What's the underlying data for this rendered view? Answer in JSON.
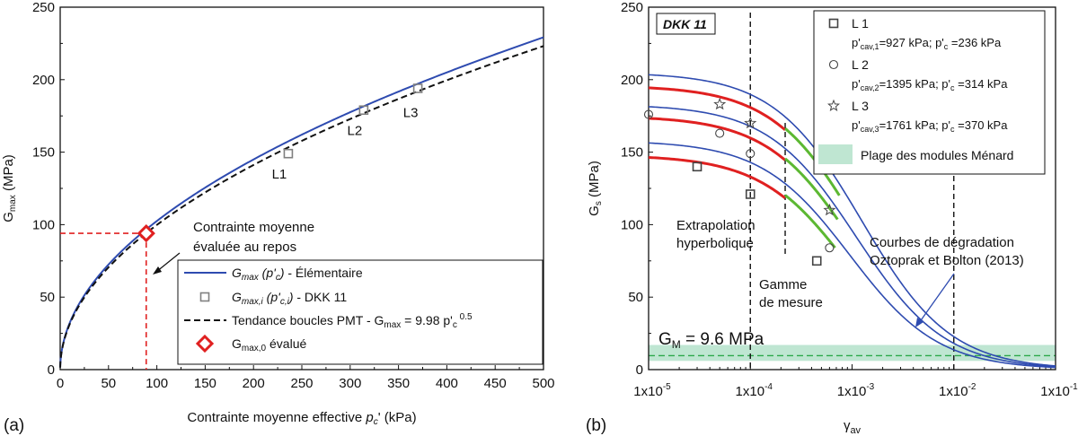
{
  "chart_data": [
    {
      "panel_label": "(a)",
      "type": "line",
      "xlabel_prefix": "Contrainte moyenne effective ",
      "xlabel_var": "p",
      "xlabel_sub": "c",
      "xlabel_suffix": "' (kPa)",
      "ylabel_main": "G",
      "ylabel_sub": "max",
      "ylabel_suffix": " (MPa)",
      "xlim": [
        0,
        500
      ],
      "ylim": [
        0,
        250
      ],
      "xticks": [
        0,
        50,
        100,
        150,
        200,
        250,
        300,
        350,
        400,
        450,
        500
      ],
      "yticks": [
        0,
        50,
        100,
        150,
        200,
        250
      ],
      "series": [
        {
          "name": "G_max (p'_c) - Élémentaire",
          "kind": "line",
          "color": "#2e4bb0",
          "function": "10.25*sqrt(x)"
        },
        {
          "name": "Tendance boucles PMT - G_max = 9.98 p'_c^0.5",
          "kind": "dashed",
          "color": "#111111",
          "function": "9.98*sqrt(x)"
        },
        {
          "name": "G_max,i (p'_c,i) - DKK 11",
          "kind": "markers",
          "marker": "square",
          "color": "#808080",
          "points": [
            {
              "x": 236,
              "y": 149,
              "label": "L1"
            },
            {
              "x": 314,
              "y": 179,
              "label": "L2"
            },
            {
              "x": 370,
              "y": 194,
              "label": "L3"
            }
          ]
        },
        {
          "name": "G_max,0 évalué",
          "kind": "marker",
          "marker": "diamond",
          "color": "#e02020",
          "points": [
            {
              "x": 89,
              "y": 94
            }
          ]
        }
      ],
      "guide_lines": {
        "x": 89,
        "y": 94,
        "color": "#e02020"
      },
      "annotation": [
        "Contrainte moyenne",
        "évaluée au repos"
      ],
      "legend": {
        "placement": "bottom-right",
        "entries": [
          {
            "kind": "line",
            "parts": [
              {
                "t": "G",
                "s": "i"
              },
              {
                "t": "max",
                "s": "isub"
              },
              {
                "t": " (p'",
                "s": "i"
              },
              {
                "t": "c",
                "s": "isub"
              },
              {
                "t": ")",
                "s": "i"
              },
              {
                "t": " - Élémentaire",
                "s": "n"
              }
            ]
          },
          {
            "kind": "square",
            "parts": [
              {
                "t": "G",
                "s": "i"
              },
              {
                "t": "max,i",
                "s": "isub"
              },
              {
                "t": " (p'",
                "s": "i"
              },
              {
                "t": "c,i",
                "s": "isub"
              },
              {
                "t": ")",
                "s": "i"
              },
              {
                "t": " - DKK 11",
                "s": "n"
              }
            ]
          },
          {
            "kind": "dashed",
            "parts": [
              {
                "t": "Tendance boucles PMT - G",
                "s": "n"
              },
              {
                "t": "max",
                "s": "sub"
              },
              {
                "t": " = 9.98 p'",
                "s": "n"
              },
              {
                "t": "c",
                "s": "sub"
              },
              {
                "t": " 0.5",
                "s": "sup"
              }
            ]
          },
          {
            "kind": "diamond",
            "parts": [
              {
                "t": "G",
                "s": "n"
              },
              {
                "t": "max,0",
                "s": "sub"
              },
              {
                "t": " évalué",
                "s": "n"
              }
            ]
          }
        ]
      }
    },
    {
      "panel_label": "(b)",
      "type": "line",
      "x_scale": "log",
      "xlabel_main": "γ",
      "xlabel_sub": "av",
      "ylabel_main": "G",
      "ylabel_sub": "s",
      "ylabel_suffix": " (MPa)",
      "xlim": [
        1e-05,
        0.1
      ],
      "ylim": [
        0,
        250
      ],
      "xticks": [
        "1x10",
        "1x10",
        "1x10",
        "1x10",
        "1x10"
      ],
      "xtick_exponents": [
        "-5",
        "-4",
        "-3",
        "-2",
        "-1"
      ],
      "yticks": [
        0,
        50,
        100,
        150,
        200,
        250
      ],
      "tag": "DKK 11",
      "series": [
        {
          "name": "Courbe L1",
          "G0": 158,
          "gamma_ref": 0.00095,
          "color": "#2e4bb0"
        },
        {
          "name": "Courbe L2",
          "G0": 183,
          "gamma_ref": 0.0011,
          "color": "#2e4bb0"
        },
        {
          "name": "Courbe L3",
          "G0": 205,
          "gamma_ref": 0.00125,
          "color": "#2e4bb0"
        }
      ],
      "red_segments": [
        {
          "curve": "L1",
          "from": 1e-05,
          "to": 0.00022,
          "offset": -10
        },
        {
          "curve": "L2",
          "from": 1e-05,
          "to": 0.00022,
          "offset": -8
        },
        {
          "curve": "L3",
          "from": 1e-05,
          "to": 0.00022,
          "offset": -9
        }
      ],
      "green_segments": [
        {
          "curve": "L1",
          "from": 0.00022,
          "to": 0.00068,
          "offset": -8
        },
        {
          "curve": "L2",
          "from": 0.00022,
          "to": 0.00072,
          "offset": -7
        },
        {
          "curve": "L3",
          "from": 0.00022,
          "to": 0.00075,
          "offset": -8
        }
      ],
      "markers": [
        {
          "curve": "L1",
          "marker": "square",
          "x": [
            3e-05,
            0.0001,
            0.00045
          ],
          "y": [
            140,
            121,
            75
          ]
        },
        {
          "curve": "L2",
          "marker": "circle",
          "x": [
            1e-05,
            5e-05,
            0.0001,
            0.0006
          ],
          "y": [
            176,
            163,
            149,
            84
          ]
        },
        {
          "curve": "L3",
          "marker": "star",
          "x": [
            5e-05,
            0.0001,
            0.0006
          ],
          "y": [
            183,
            170,
            110
          ]
        }
      ],
      "vlines": [
        0.0001,
        0.00022,
        0.01
      ],
      "hband": {
        "from": 6,
        "to": 17,
        "color": "#bfe6d2"
      },
      "hline": {
        "y": 9.6,
        "color": "#2ba84a"
      },
      "gm_label": "G",
      "gm_sub": "M",
      "gm_value": " = 9.6 MPa",
      "annotations": {
        "extrapolation": [
          "Extrapolation",
          "hyperbolique"
        ],
        "gamme": [
          "Gamme",
          "de mesure"
        ],
        "courbes": [
          "Courbes de dégradation",
          "Oztoprak et Bolton (2013)"
        ]
      },
      "legend": {
        "placement": "top-right",
        "entries": [
          {
            "marker": "square",
            "title": "L 1",
            "pcav_sub": "cav,1",
            "pcav": "=927 kPa; p'",
            "pc": " =236 kPa"
          },
          {
            "marker": "circle",
            "title": "L 2",
            "pcav_sub": "cav,2",
            "pcav": "=1395 kPa; p'",
            "pc": " =314 kPa"
          },
          {
            "marker": "star",
            "title": "L 3",
            "pcav_sub": "cav,3",
            "pcav": "=1761 kPa; p'",
            "pc": " =370 kPa"
          }
        ],
        "band_label": "Plage des modules Ménard"
      }
    }
  ]
}
